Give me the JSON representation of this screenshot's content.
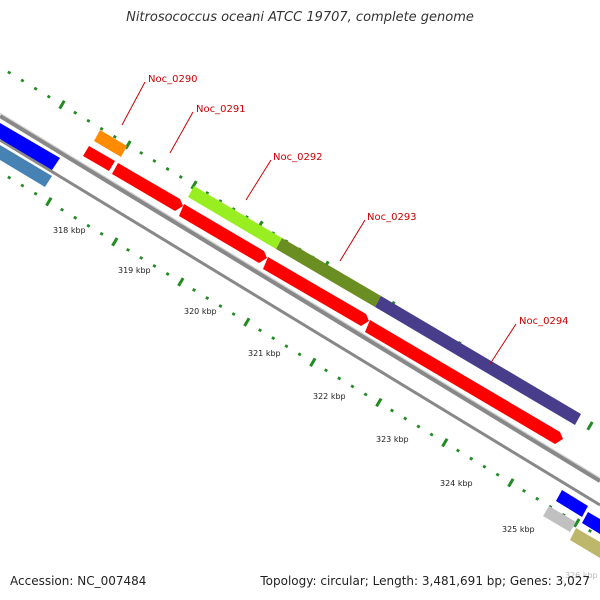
{
  "title": "Nitrosococcus oceani ATCC 19707, complete genome",
  "accession": "Accession: NC_007484",
  "summary": "Topology: circular; Length: 3,481,691 bp; Genes: 3,027",
  "scale_labels": [
    "318 kbp",
    "319 kbp",
    "320 kbp",
    "321 kbp",
    "322 kbp",
    "323 kbp",
    "324 kbp",
    "325 kbp",
    "326 kbp"
  ],
  "gene_labels": [
    "Noc_0290",
    "Noc_0291",
    "Noc_0292",
    "Noc_0293",
    "Noc_0294"
  ],
  "colors": {
    "cds_red": "#ff0000",
    "orange": "#ff8c00",
    "green_light": "#99ee22",
    "green_dark": "#6b8e23",
    "purple": "#483d8b",
    "blue": "#0000ff",
    "steel": "#4682b4",
    "tick_green": "#228b22",
    "backbone": "#888888",
    "label_red": "#cc0000",
    "silver": "#c0c0c0",
    "khaki": "#bdb76b"
  }
}
